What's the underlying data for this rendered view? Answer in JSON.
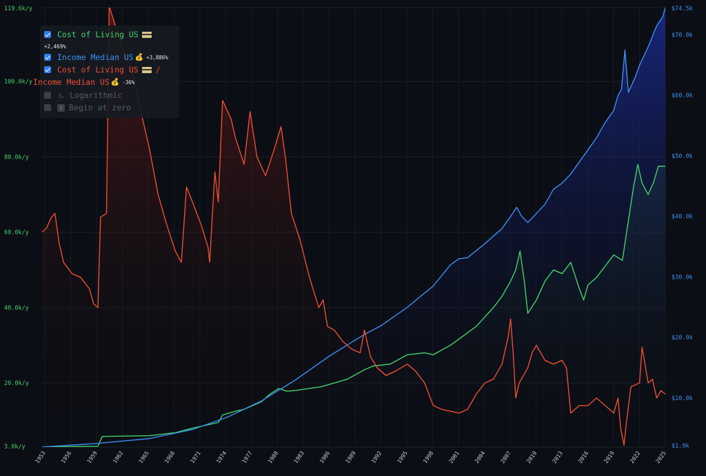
{
  "legend": {
    "col": {
      "label": "Cost of Living US",
      "change": "+2,469%",
      "color": "#45d16b"
    },
    "inc": {
      "label": "Income Median US",
      "emoji": "💰",
      "change": "+3,886%",
      "color": "#3d8ff0"
    },
    "ratio": {
      "label_a": "Cost of Living US",
      "sep": "/",
      "label_b": "Income Median US",
      "emoji": "💰",
      "change": "-36%",
      "color": "#ee4d35"
    },
    "options": {
      "logarithmic": "Logarithmic",
      "begin_at_zero": "Begin at zero",
      "zero_glyph": "0",
      "ruler_glyph": "◺"
    }
  },
  "chart_data": {
    "type": "line",
    "x_ticks": [
      "1953",
      "1956",
      "1959",
      "1962",
      "1965",
      "1968",
      "1971",
      "1974",
      "1977",
      "1980",
      "1983",
      "1986",
      "1989",
      "1992",
      "1995",
      "1998",
      "2001",
      "2004",
      "2007",
      "2010",
      "2013",
      "2016",
      "2019",
      "2022",
      "2025"
    ],
    "left_axis": {
      "ticks": [
        "3.0k/y",
        "20.0k/y",
        "40.0k/y",
        "60.0k/y",
        "80.0k/y",
        "100.0k/y",
        "119.6k/y"
      ],
      "tick_values": [
        3.0,
        20,
        40,
        60,
        80,
        100,
        119.6
      ],
      "range": [
        3.0,
        119.6
      ],
      "color": "#45d16b"
    },
    "right_axis": {
      "ticks": [
        "$1.9k",
        "$10.0k",
        "$20.0k",
        "$30.0k",
        "$40.0k",
        "$50.0k",
        "$60.0k",
        "$70.0k",
        "$74.5k"
      ],
      "tick_values": [
        1.9,
        10,
        20,
        30,
        40,
        50,
        60,
        70,
        74.5
      ],
      "range": [
        1.9,
        74.5
      ],
      "color": "#3d8ff0"
    },
    "ratio_axis": {
      "range": [
        3.0,
        119.6
      ],
      "note": "ratio series plotted on left scale"
    },
    "series": [
      {
        "name": "Cost of Living US",
        "axis": "left",
        "color": "#45d16b",
        "points": [
          [
            1952.5,
            3.0
          ],
          [
            1959,
            3.2
          ],
          [
            1959.5,
            5.8
          ],
          [
            1965,
            6.0
          ],
          [
            1968,
            6.8
          ],
          [
            1970,
            8.0
          ],
          [
            1973,
            9.5
          ],
          [
            1973.5,
            11.5
          ],
          [
            1975,
            12.5
          ],
          [
            1976,
            13.0
          ],
          [
            1977,
            14.0
          ],
          [
            1978,
            15.0
          ],
          [
            1979,
            17.0
          ],
          [
            1980,
            18.5
          ],
          [
            1981,
            17.8
          ],
          [
            1982,
            18.0
          ],
          [
            1985,
            19.0
          ],
          [
            1988,
            21.0
          ],
          [
            1990,
            23.5
          ],
          [
            1991,
            24.5
          ],
          [
            1993,
            25.0
          ],
          [
            1995,
            27.5
          ],
          [
            1997,
            28.0
          ],
          [
            1998,
            27.5
          ],
          [
            2000,
            30.0
          ],
          [
            2003,
            35.0
          ],
          [
            2005,
            40.0
          ],
          [
            2006,
            43.0
          ],
          [
            2007,
            47.0
          ],
          [
            2007.6,
            50.0
          ],
          [
            2008.1,
            55.0
          ],
          [
            2008.6,
            47.0
          ],
          [
            2009,
            38.5
          ],
          [
            2010,
            42.0
          ],
          [
            2011,
            47.0
          ],
          [
            2012,
            50.0
          ],
          [
            2013,
            49.0
          ],
          [
            2014,
            52.0
          ],
          [
            2015,
            45.0
          ],
          [
            2015.5,
            42.0
          ],
          [
            2016,
            46.0
          ],
          [
            2017,
            48.0
          ],
          [
            2018,
            51.0
          ],
          [
            2019,
            54.0
          ],
          [
            2020,
            52.5
          ],
          [
            2020.7,
            63.0
          ],
          [
            2021.3,
            72.0
          ],
          [
            2021.8,
            78.0
          ],
          [
            2022.3,
            73.0
          ],
          [
            2023,
            70.0
          ],
          [
            2023.6,
            73.0
          ],
          [
            2024.2,
            77.5
          ],
          [
            2025,
            77.5
          ]
        ]
      },
      {
        "name": "Income Median US",
        "axis": "right",
        "color": "#3d8ff0",
        "points": [
          [
            1952.5,
            1.9
          ],
          [
            1959,
            2.5
          ],
          [
            1965,
            3.3
          ],
          [
            1970,
            4.8
          ],
          [
            1974,
            6.8
          ],
          [
            1978,
            9.5
          ],
          [
            1982,
            13.0
          ],
          [
            1986,
            17.0
          ],
          [
            1990,
            20.5
          ],
          [
            1992,
            22.0
          ],
          [
            1995,
            25.0
          ],
          [
            1998,
            28.5
          ],
          [
            2000,
            32.0
          ],
          [
            2001,
            33.0
          ],
          [
            2002,
            33.2
          ],
          [
            2004,
            35.5
          ],
          [
            2006,
            38.0
          ],
          [
            2007,
            40.0
          ],
          [
            2007.7,
            41.5
          ],
          [
            2008.3,
            40.0
          ],
          [
            2009,
            39.0
          ],
          [
            2010,
            40.5
          ],
          [
            2011,
            42.0
          ],
          [
            2012,
            44.5
          ],
          [
            2013,
            45.5
          ],
          [
            2014,
            47.0
          ],
          [
            2015,
            49.0
          ],
          [
            2016,
            51.0
          ],
          [
            2017,
            53.0
          ],
          [
            2018,
            55.5
          ],
          [
            2019,
            57.5
          ],
          [
            2019.5,
            60.0
          ],
          [
            2019.9,
            61.0
          ],
          [
            2020.3,
            67.5
          ],
          [
            2020.7,
            60.5
          ],
          [
            2021.5,
            63.0
          ],
          [
            2022,
            65.0
          ],
          [
            2023,
            68.0
          ],
          [
            2024,
            71.5
          ],
          [
            2024.7,
            73.0
          ],
          [
            2025,
            74.5
          ]
        ]
      },
      {
        "name": "Cost of Living US / Income Median US",
        "axis": "left",
        "color": "#ee4d35",
        "points": [
          [
            1952.5,
            60.0
          ],
          [
            1953,
            61.0
          ],
          [
            1953.6,
            64.0
          ],
          [
            1954,
            65.0
          ],
          [
            1954.5,
            57.0
          ],
          [
            1955,
            52.0
          ],
          [
            1956,
            49.0
          ],
          [
            1957,
            48.0
          ],
          [
            1958,
            45.0
          ],
          [
            1958.5,
            41.0
          ],
          [
            1959,
            40.0
          ],
          [
            1959.3,
            64.0
          ],
          [
            1960,
            65.0
          ],
          [
            1960.3,
            120.0
          ],
          [
            1961,
            115.0
          ],
          [
            1962,
            108.0
          ],
          [
            1963,
            103.0
          ],
          [
            1964,
            92.0
          ],
          [
            1965,
            82.0
          ],
          [
            1966,
            70.0
          ],
          [
            1967,
            62.0
          ],
          [
            1968,
            55.0
          ],
          [
            1968.7,
            52.0
          ],
          [
            1969.3,
            72.0
          ],
          [
            1970,
            68.0
          ],
          [
            1971,
            62.0
          ],
          [
            1971.8,
            56.0
          ],
          [
            1972,
            52.0
          ],
          [
            1972.6,
            76.0
          ],
          [
            1973,
            68.0
          ],
          [
            1973.5,
            95.0
          ],
          [
            1974.5,
            90.0
          ],
          [
            1975,
            85.0
          ],
          [
            1976,
            78.0
          ],
          [
            1976.7,
            92.0
          ],
          [
            1977.5,
            80.0
          ],
          [
            1978.5,
            75.0
          ],
          [
            1979.5,
            82.0
          ],
          [
            1980.3,
            88.0
          ],
          [
            1980.8,
            80.0
          ],
          [
            1981.5,
            65.0
          ],
          [
            1982.5,
            58.0
          ],
          [
            1983.5,
            49.0
          ],
          [
            1984,
            45.0
          ],
          [
            1984.7,
            40.0
          ],
          [
            1985.2,
            42.0
          ],
          [
            1985.7,
            35.0
          ],
          [
            1986.5,
            34.0
          ],
          [
            1987.5,
            31.0
          ],
          [
            1988.5,
            29.0
          ],
          [
            1989.5,
            28.0
          ],
          [
            1990,
            34.0
          ],
          [
            1990.7,
            27.0
          ],
          [
            1991.5,
            24.0
          ],
          [
            1992.5,
            22.0
          ],
          [
            1993.5,
            23.0
          ],
          [
            1995,
            25.0
          ],
          [
            1996,
            23.0
          ],
          [
            1997,
            20.0
          ],
          [
            1998,
            14.0
          ],
          [
            1999,
            13.0
          ],
          [
            2000,
            12.5
          ],
          [
            2001,
            12.0
          ],
          [
            2002,
            13.0
          ],
          [
            2003,
            17.0
          ],
          [
            2004,
            20.0
          ],
          [
            2005,
            21.0
          ],
          [
            2006,
            25.0
          ],
          [
            2006.7,
            32.0
          ],
          [
            2007,
            37.0
          ],
          [
            2007.3,
            28.0
          ],
          [
            2007.6,
            16.0
          ],
          [
            2008,
            20.0
          ],
          [
            2009,
            24.0
          ],
          [
            2009.5,
            28.0
          ],
          [
            2010,
            30.0
          ],
          [
            2011,
            26.0
          ],
          [
            2012,
            25.0
          ],
          [
            2013,
            26.0
          ],
          [
            2013.5,
            24.0
          ],
          [
            2014,
            12.0
          ],
          [
            2015,
            14.0
          ],
          [
            2016,
            14.0
          ],
          [
            2017,
            16.0
          ],
          [
            2018,
            14.0
          ],
          [
            2019,
            12.0
          ],
          [
            2019.5,
            16.0
          ],
          [
            2019.8,
            8.0
          ],
          [
            2020.2,
            3.5
          ],
          [
            2020.5,
            10.0
          ],
          [
            2021,
            19.0
          ],
          [
            2022,
            20.0
          ],
          [
            2022.3,
            29.5
          ],
          [
            2023,
            20.0
          ],
          [
            2023.5,
            21.0
          ],
          [
            2024,
            16.0
          ],
          [
            2024.5,
            18.0
          ],
          [
            2025,
            17.0
          ]
        ]
      }
    ]
  }
}
